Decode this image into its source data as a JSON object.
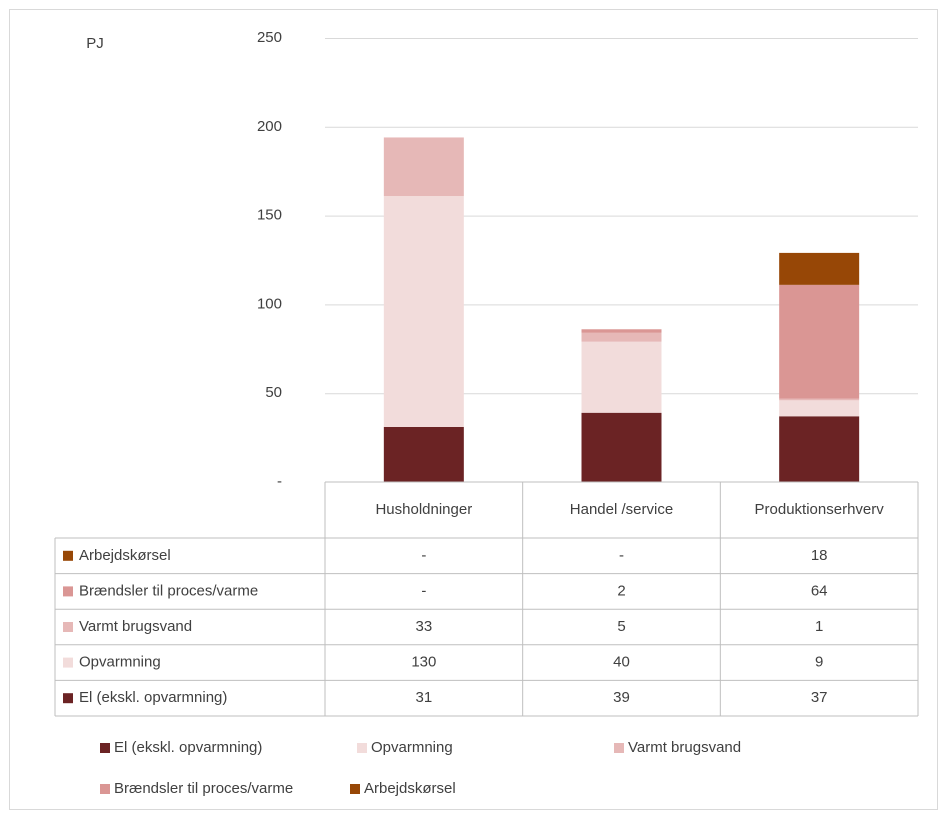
{
  "chart_data": {
    "type": "stacked_bar",
    "y_label": "PJ",
    "categories": [
      "Husholdninger",
      "Handel /service",
      "Produktionserhverv"
    ],
    "series": [
      {
        "name": "El (ekskl. opvarmning)",
        "color": "#6b2324",
        "values": [
          31,
          39,
          37
        ]
      },
      {
        "name": "Opvarmning",
        "color": "#f2dcdb",
        "values": [
          130,
          40,
          9
        ]
      },
      {
        "name": "Varmt brugsvand",
        "color": "#e6b8b7",
        "values": [
          33,
          5,
          1
        ]
      },
      {
        "name": "Brændsler til proces/varme",
        "color": "#da9694",
        "values": [
          0,
          2,
          64
        ],
        "value_labels": [
          "-",
          "2",
          "64"
        ]
      },
      {
        "name": "Arbejdskørsel",
        "color": "#974706",
        "values": [
          0,
          0,
          18
        ],
        "value_labels": [
          "-",
          "-",
          "18"
        ]
      }
    ],
    "ylim": [
      0,
      250
    ],
    "yticks": [
      {
        "value": 0,
        "label": "-"
      },
      50,
      100,
      150,
      200,
      250
    ],
    "grid": true
  }
}
